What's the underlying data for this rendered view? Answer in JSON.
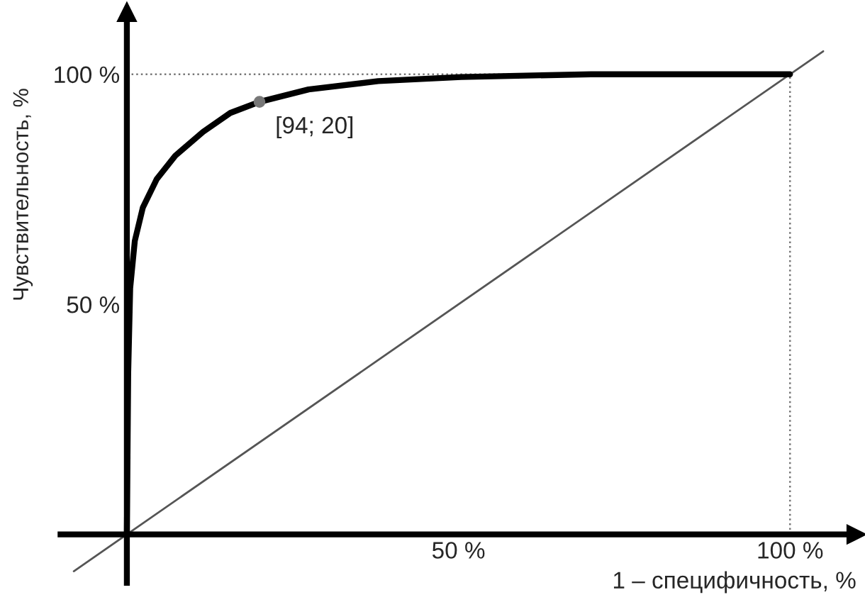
{
  "chart_data": {
    "type": "line",
    "xlabel": "1 – специфичность, %",
    "ylabel": "Чувствительность, %",
    "xlim": [
      -10,
      110
    ],
    "ylim": [
      -10.5,
      113.5
    ],
    "xticks": [
      {
        "value": 50,
        "label": "50 %"
      },
      {
        "value": 100,
        "label": "100 %"
      }
    ],
    "yticks": [
      {
        "value": 50,
        "label": "50 %"
      },
      {
        "value": 100,
        "label": "100 %"
      }
    ],
    "series": [
      {
        "color": "#000000",
        "x": [
          0,
          0.2,
          0.5,
          1.2,
          2.4,
          4.5,
          7.3,
          11.5,
          15.6,
          20,
          27.4,
          37.9,
          50.4,
          70,
          100
        ],
        "values": [
          0,
          35,
          53.5,
          63.8,
          71,
          77.2,
          82.3,
          87.5,
          91.6,
          94,
          96.7,
          98.5,
          99.4,
          100,
          100
        ]
      },
      {
        "color": "#555555",
        "x": [
          -8,
          105
        ],
        "values": [
          -8,
          105
        ]
      },
      {
        "color": "#777777",
        "x": [
          0,
          100
        ],
        "values": [
          100,
          100
        ],
        "line_style": "dotted"
      },
      {
        "color": "#777777",
        "x": [
          100,
          100
        ],
        "values": [
          0,
          100
        ],
        "line_style": "dotted"
      },
      {
        "type": "scatter",
        "color": "#777777",
        "x": [
          20
        ],
        "values": [
          94
        ],
        "marker": "circle"
      }
    ],
    "annotations": [
      {
        "text": "[94; 20]",
        "x": 20,
        "y": 94
      }
    ],
    "grid": false,
    "legend": false
  }
}
